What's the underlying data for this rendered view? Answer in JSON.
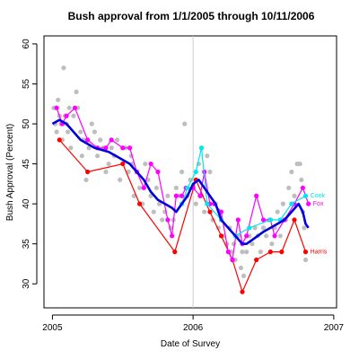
{
  "chart_data": {
    "type": "line",
    "title": "Bush approval from 1/1/2005 through 10/11/2006",
    "xlabel": "Date of Survey",
    "ylabel": "Bush Approval (Percent)",
    "xlim": [
      2004.94,
      2007.02
    ],
    "ylim": [
      27,
      61
    ],
    "x_ticks": [
      2005,
      2006,
      2007
    ],
    "x_tick_labels": [
      "2005",
      "2006",
      "2007"
    ],
    "y_ticks": [
      30,
      35,
      40,
      45,
      50,
      55,
      60
    ],
    "y_tick_labels": [
      "30",
      "35",
      "40",
      "45",
      "50",
      "55",
      "60"
    ],
    "reference_line_x": 2006,
    "grid": false,
    "legend": "labels at line ends (right)",
    "colors": {
      "polls": "#bebebe",
      "trend": "#0000dd",
      "gallup": "#ff00ff",
      "harris": "#ff0000",
      "cook": "#00e5ee",
      "reference": "#cccccc"
    },
    "polls": [
      [
        2005.01,
        52
      ],
      [
        2005.02,
        50
      ],
      [
        2005.03,
        49
      ],
      [
        2005.04,
        53
      ],
      [
        2005.05,
        51
      ],
      [
        2005.06,
        50
      ],
      [
        2005.07,
        48
      ],
      [
        2005.08,
        57
      ],
      [
        2005.09,
        51
      ],
      [
        2005.1,
        50
      ],
      [
        2005.11,
        49
      ],
      [
        2005.12,
        52
      ],
      [
        2005.13,
        47
      ],
      [
        2005.15,
        51
      ],
      [
        2005.17,
        54
      ],
      [
        2005.18,
        52
      ],
      [
        2005.2,
        49
      ],
      [
        2005.21,
        46
      ],
      [
        2005.22,
        48
      ],
      [
        2005.24,
        43
      ],
      [
        2005.26,
        47
      ],
      [
        2005.28,
        50
      ],
      [
        2005.3,
        49
      ],
      [
        2005.32,
        46
      ],
      [
        2005.34,
        48
      ],
      [
        2005.36,
        47
      ],
      [
        2005.38,
        44
      ],
      [
        2005.4,
        45
      ],
      [
        2005.42,
        47
      ],
      [
        2005.44,
        46
      ],
      [
        2005.46,
        48
      ],
      [
        2005.48,
        43
      ],
      [
        2005.5,
        45
      ],
      [
        2005.52,
        47
      ],
      [
        2005.54,
        44
      ],
      [
        2005.56,
        46
      ],
      [
        2005.57,
        45
      ],
      [
        2005.58,
        41
      ],
      [
        2005.6,
        44
      ],
      [
        2005.62,
        42
      ],
      [
        2005.64,
        40
      ],
      [
        2005.66,
        45
      ],
      [
        2005.68,
        43
      ],
      [
        2005.7,
        41
      ],
      [
        2005.72,
        39
      ],
      [
        2005.74,
        42
      ],
      [
        2005.76,
        40
      ],
      [
        2005.78,
        38
      ],
      [
        2005.8,
        39
      ],
      [
        2005.82,
        41
      ],
      [
        2005.84,
        37
      ],
      [
        2005.86,
        38
      ],
      [
        2005.88,
        42
      ],
      [
        2005.9,
        41
      ],
      [
        2005.92,
        44
      ],
      [
        2005.94,
        50
      ],
      [
        2005.95,
        42
      ],
      [
        2005.96,
        41
      ],
      [
        2005.98,
        43
      ],
      [
        2006.0,
        42
      ],
      [
        2006.02,
        40
      ],
      [
        2006.04,
        45
      ],
      [
        2006.06,
        41
      ],
      [
        2006.08,
        39
      ],
      [
        2006.1,
        46
      ],
      [
        2006.12,
        44
      ],
      [
        2006.14,
        38
      ],
      [
        2006.16,
        40
      ],
      [
        2006.18,
        37
      ],
      [
        2006.2,
        38
      ],
      [
        2006.22,
        36
      ],
      [
        2006.24,
        35
      ],
      [
        2006.26,
        37
      ],
      [
        2006.27,
        34
      ],
      [
        2006.28,
        33
      ],
      [
        2006.29,
        35
      ],
      [
        2006.3,
        33
      ],
      [
        2006.32,
        36
      ],
      [
        2006.34,
        32
      ],
      [
        2006.35,
        34
      ],
      [
        2006.36,
        31
      ],
      [
        2006.38,
        34
      ],
      [
        2006.4,
        36
      ],
      [
        2006.42,
        35
      ],
      [
        2006.44,
        37
      ],
      [
        2006.46,
        36
      ],
      [
        2006.48,
        34
      ],
      [
        2006.5,
        37
      ],
      [
        2006.52,
        36
      ],
      [
        2006.54,
        38
      ],
      [
        2006.56,
        35
      ],
      [
        2006.58,
        37
      ],
      [
        2006.6,
        39
      ],
      [
        2006.62,
        36
      ],
      [
        2006.64,
        40
      ],
      [
        2006.66,
        38
      ],
      [
        2006.68,
        42
      ],
      [
        2006.7,
        44
      ],
      [
        2006.72,
        41
      ],
      [
        2006.74,
        45
      ],
      [
        2006.76,
        45
      ],
      [
        2006.77,
        43
      ],
      [
        2006.78,
        39
      ],
      [
        2006.79,
        37
      ],
      [
        2006.8,
        33
      ]
    ],
    "series": [
      {
        "name": "Harris",
        "values": [
          [
            2005.05,
            48
          ],
          [
            2005.25,
            44
          ],
          [
            2005.5,
            45
          ],
          [
            2005.62,
            40
          ],
          [
            2005.87,
            34
          ],
          [
            2006.02,
            43
          ],
          [
            2006.12,
            39
          ],
          [
            2006.2,
            36
          ],
          [
            2006.28,
            33
          ],
          [
            2006.35,
            29
          ],
          [
            2006.45,
            33
          ],
          [
            2006.55,
            34
          ],
          [
            2006.63,
            34
          ],
          [
            2006.72,
            38
          ],
          [
            2006.8,
            34
          ]
        ]
      },
      {
        "name": "Fox",
        "values": [
          [
            2005.03,
            52
          ],
          [
            2005.07,
            50
          ],
          [
            2005.1,
            51
          ],
          [
            2005.16,
            52
          ],
          [
            2005.25,
            48
          ],
          [
            2005.32,
            47
          ],
          [
            2005.38,
            47
          ],
          [
            2005.42,
            48
          ],
          [
            2005.5,
            47
          ],
          [
            2005.55,
            47
          ],
          [
            2005.6,
            44
          ],
          [
            2005.65,
            42
          ],
          [
            2005.7,
            45
          ],
          [
            2005.75,
            44
          ],
          [
            2005.82,
            38
          ],
          [
            2005.85,
            36
          ],
          [
            2005.88,
            41
          ],
          [
            2005.92,
            41
          ],
          [
            2005.95,
            42
          ],
          [
            2006.0,
            42
          ],
          [
            2006.05,
            41
          ],
          [
            2006.08,
            44
          ],
          [
            2006.12,
            40
          ],
          [
            2006.15,
            40
          ],
          [
            2006.2,
            39
          ],
          [
            2006.25,
            34
          ],
          [
            2006.28,
            33
          ],
          [
            2006.32,
            38
          ],
          [
            2006.35,
            35
          ],
          [
            2006.38,
            36
          ],
          [
            2006.45,
            41
          ],
          [
            2006.5,
            38
          ],
          [
            2006.55,
            38
          ],
          [
            2006.58,
            36
          ],
          [
            2006.65,
            38
          ],
          [
            2006.72,
            40
          ],
          [
            2006.78,
            42
          ],
          [
            2006.82,
            40
          ]
        ]
      },
      {
        "name": "Cook",
        "values": [
          [
            2005.92,
            40
          ],
          [
            2005.96,
            42
          ],
          [
            2006.02,
            44
          ],
          [
            2006.06,
            47
          ],
          [
            2006.1,
            40
          ],
          [
            2006.2,
            38
          ],
          [
            2006.3,
            36
          ],
          [
            2006.4,
            37
          ],
          [
            2006.55,
            38
          ],
          [
            2006.62,
            38
          ],
          [
            2006.7,
            40
          ],
          [
            2006.8,
            41
          ]
        ]
      },
      {
        "name": "trend",
        "values": [
          [
            2005.0,
            50
          ],
          [
            2005.05,
            50.5
          ],
          [
            2005.1,
            50
          ],
          [
            2005.15,
            49
          ],
          [
            2005.2,
            48
          ],
          [
            2005.3,
            47
          ],
          [
            2005.4,
            46.5
          ],
          [
            2005.5,
            45.5
          ],
          [
            2005.55,
            45
          ],
          [
            2005.6,
            44
          ],
          [
            2005.65,
            43
          ],
          [
            2005.7,
            41.5
          ],
          [
            2005.75,
            40.5
          ],
          [
            2005.8,
            40
          ],
          [
            2005.85,
            39.5
          ],
          [
            2005.88,
            39
          ],
          [
            2005.92,
            40
          ],
          [
            2005.96,
            41
          ],
          [
            2006.0,
            42.5
          ],
          [
            2006.04,
            43
          ],
          [
            2006.08,
            42
          ],
          [
            2006.12,
            41
          ],
          [
            2006.16,
            40
          ],
          [
            2006.2,
            38
          ],
          [
            2006.25,
            37
          ],
          [
            2006.3,
            36
          ],
          [
            2006.35,
            35
          ],
          [
            2006.38,
            35
          ],
          [
            2006.42,
            35.5
          ],
          [
            2006.46,
            36
          ],
          [
            2006.5,
            36.5
          ],
          [
            2006.55,
            37
          ],
          [
            2006.6,
            37.5
          ],
          [
            2006.65,
            38
          ],
          [
            2006.7,
            39
          ],
          [
            2006.75,
            40
          ],
          [
            2006.78,
            39
          ],
          [
            2006.8,
            37.5
          ],
          [
            2006.82,
            37
          ]
        ]
      }
    ],
    "labels": [
      {
        "series": "Cook",
        "text": "Cook",
        "x": 2006.82,
        "y": 41
      },
      {
        "series": "Fox",
        "text": "Fox",
        "x": 2006.84,
        "y": 40
      },
      {
        "series": "Harris",
        "text": "Harris",
        "x": 2006.82,
        "y": 34
      }
    ]
  }
}
